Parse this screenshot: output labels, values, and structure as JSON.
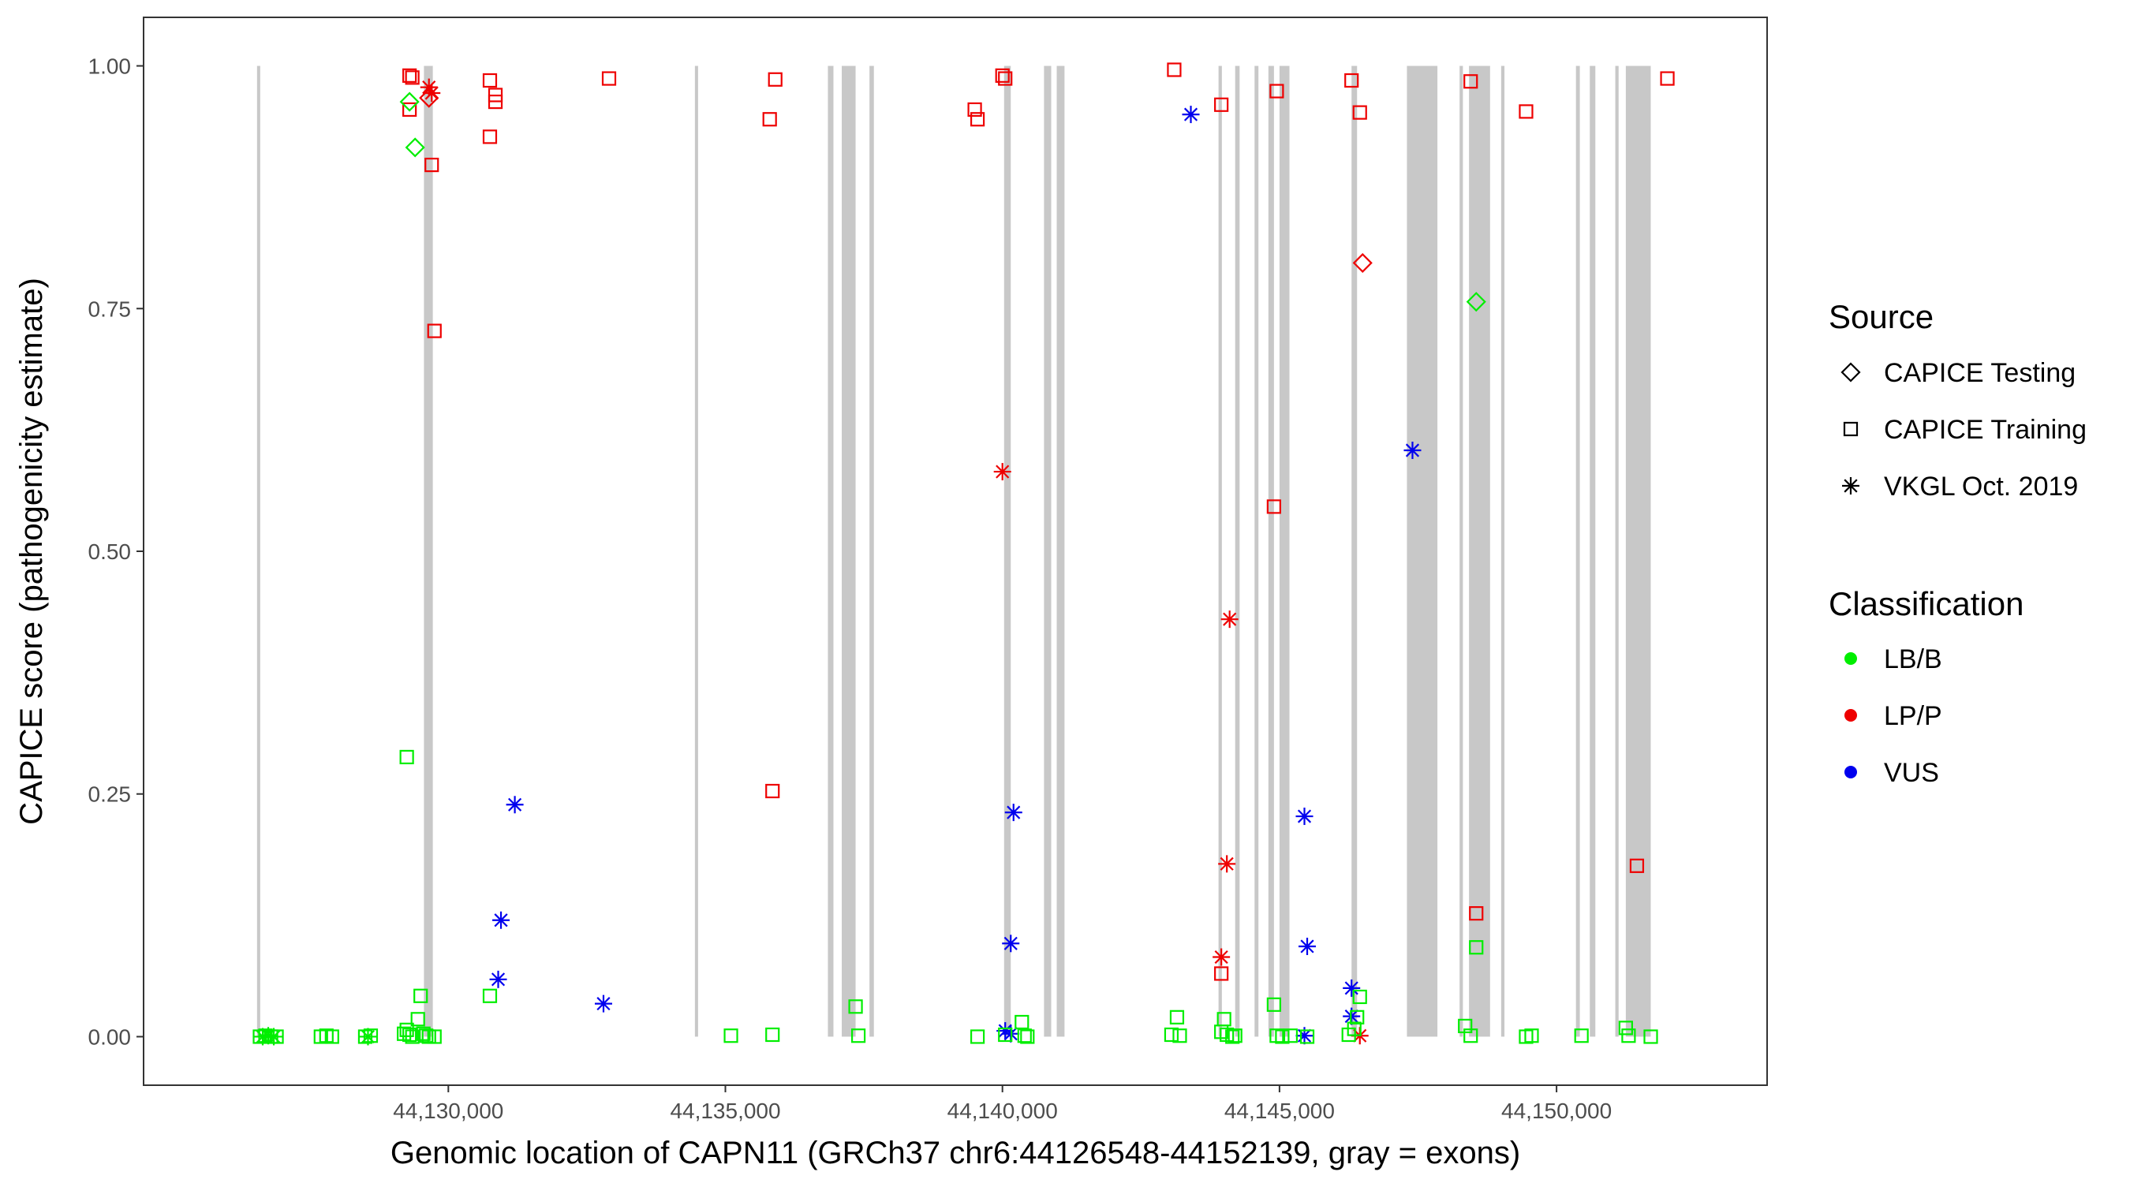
{
  "chart_data": {
    "type": "scatter",
    "title": "",
    "xlabel": "Genomic location of CAPN11 (GRCh37 chr6:44126548-44152139, gray = exons)",
    "ylabel": "CAPICE score (pathogenicity estimate)",
    "xlim": [
      44124500,
      44153800
    ],
    "ylim": [
      -0.05,
      1.05
    ],
    "x_ticks": [
      44130000,
      44135000,
      44140000,
      44145000,
      44150000
    ],
    "x_tick_labels": [
      "44,130,000",
      "44,135,000",
      "44,140,000",
      "44,145,000",
      "44,150,000"
    ],
    "y_ticks": [
      0,
      0.25,
      0.5,
      0.75,
      1.0
    ],
    "y_tick_labels": [
      "0.00",
      "0.25",
      "0.50",
      "0.75",
      "1.00"
    ],
    "grid": false,
    "exons": [
      [
        44126548,
        44126600
      ],
      [
        44129560,
        44129720
      ],
      [
        44134450,
        44134500
      ],
      [
        44136850,
        44136950
      ],
      [
        44137100,
        44137350
      ],
      [
        44137600,
        44137680
      ],
      [
        44140030,
        44140150
      ],
      [
        44140750,
        44140880
      ],
      [
        44140980,
        44141120
      ],
      [
        44143900,
        44143960
      ],
      [
        44144200,
        44144280
      ],
      [
        44144550,
        44144620
      ],
      [
        44144800,
        44144900
      ],
      [
        44145000,
        44145180
      ],
      [
        44146300,
        44146400
      ],
      [
        44147300,
        44147850
      ],
      [
        44148250,
        44148310
      ],
      [
        44148420,
        44148800
      ],
      [
        44149000,
        44149060
      ],
      [
        44150350,
        44150420
      ],
      [
        44150600,
        44150700
      ],
      [
        44151060,
        44151120
      ],
      [
        44151250,
        44151700
      ]
    ],
    "legend": {
      "placement": "right",
      "source_title": "Source",
      "source_items": [
        {
          "label": "CAPICE Testing",
          "shape": "diamond"
        },
        {
          "label": "CAPICE Training",
          "shape": "square"
        },
        {
          "label": "VKGL Oct. 2019",
          "shape": "asterisk"
        }
      ],
      "class_title": "Classification",
      "class_items": [
        {
          "label": "LB/B",
          "color": "#00ee00"
        },
        {
          "label": "LP/P",
          "color": "#ee0000"
        },
        {
          "label": "VUS",
          "color": "#0000ee"
        }
      ]
    },
    "series": [
      {
        "source": "CAPICE Training",
        "shape": "square",
        "classification": "LP/P",
        "color": "#ee0000",
        "x": [
          44129300,
          44129350,
          44129300,
          44129700,
          44129750,
          44130750,
          44130850,
          44130850,
          44130750,
          44132900,
          44135900,
          44135800,
          44135850,
          44139500,
          44139550,
          44140000,
          44140050,
          44143100,
          44143950,
          44144950,
          44144900,
          44146300,
          44146450,
          44148450,
          44149450,
          44152000,
          44143950,
          44151450,
          44148550
        ],
        "y": [
          0.99,
          0.988,
          0.955,
          0.898,
          0.727,
          0.985,
          0.97,
          0.963,
          0.927,
          0.987,
          0.986,
          0.945,
          0.253,
          0.955,
          0.945,
          0.99,
          0.987,
          0.996,
          0.96,
          0.974,
          0.546,
          0.985,
          0.952,
          0.984,
          0.953,
          0.987,
          0.065,
          0.176,
          0.127
        ]
      },
      {
        "source": "CAPICE Testing",
        "shape": "diamond",
        "classification": "LP/P",
        "color": "#ee0000",
        "x": [
          44129650,
          44146500
        ],
        "y": [
          0.967,
          0.797
        ]
      },
      {
        "source": "CAPICE Testing",
        "shape": "diamond",
        "classification": "LB/B",
        "color": "#00ee00",
        "x": [
          44129300,
          44129400,
          44148550
        ],
        "y": [
          0.963,
          0.916,
          0.757
        ]
      },
      {
        "source": "VKGL Oct. 2019",
        "shape": "asterisk",
        "classification": "LP/P",
        "color": "#ee0000",
        "x": [
          44129650,
          44129700,
          44140000,
          44144100,
          44144050,
          44143950,
          44146450
        ],
        "y": [
          0.978,
          0.972,
          0.582,
          0.43,
          0.178,
          0.082,
          0.001
        ]
      },
      {
        "source": "VKGL Oct. 2019",
        "shape": "asterisk",
        "classification": "VUS",
        "color": "#0000ee",
        "x": [
          44143400,
          44147400,
          44131200,
          44130950,
          44130900,
          44132800,
          44140200,
          44140150,
          44140050,
          44140150,
          44145450,
          44145500,
          44146300,
          44146300,
          44145450
        ],
        "y": [
          0.95,
          0.604,
          0.239,
          0.12,
          0.059,
          0.034,
          0.231,
          0.096,
          0.006,
          0.003,
          0.227,
          0.093,
          0.05,
          0.021,
          0.001
        ]
      },
      {
        "source": "CAPICE Training",
        "shape": "square",
        "classification": "LB/B",
        "color": "#00ee00",
        "x": [
          44126600,
          44126700,
          44126800,
          44126900,
          44127700,
          44127800,
          44127900,
          44128500,
          44128600,
          44129200,
          44129250,
          44129300,
          44129350,
          44129450,
          44129500,
          44129550,
          44129600,
          44129650,
          44129750,
          44129250,
          44130750,
          44135100,
          44135850,
          44137350,
          44137400,
          44139550,
          44140050,
          44140350,
          44140400,
          44140450,
          44143050,
          44143150,
          44143200,
          44143950,
          44144000,
          44144050,
          44144150,
          44144200,
          44144900,
          44144950,
          44145050,
          44145200,
          44145500,
          44146250,
          44146350,
          44146400,
          44146450,
          44148350,
          44148450,
          44148550,
          44149450,
          44149550,
          44150450,
          44151250,
          44151300,
          44151700
        ],
        "y": [
          0.0,
          0.001,
          0.0,
          0.0,
          0.0,
          0.001,
          0.0,
          0.0,
          0.001,
          0.003,
          0.007,
          0.002,
          0.0,
          0.018,
          0.042,
          0.003,
          0.001,
          0.0,
          0.0,
          0.288,
          0.042,
          0.001,
          0.002,
          0.031,
          0.001,
          0.0,
          0.002,
          0.015,
          0.001,
          0.0,
          0.002,
          0.02,
          0.001,
          0.005,
          0.018,
          0.002,
          0.0,
          0.001,
          0.033,
          0.001,
          0.0,
          0.001,
          0.0,
          0.002,
          0.008,
          0.02,
          0.041,
          0.011,
          0.001,
          0.092,
          0.0,
          0.001,
          0.001,
          0.009,
          0.001,
          0.0
        ]
      },
      {
        "source": "VKGL Oct. 2019",
        "shape": "asterisk",
        "classification": "LB/B",
        "color": "#00ee00",
        "x": [
          44126650,
          44126750,
          44126850,
          44128550
        ],
        "y": [
          0.0,
          0.001,
          0.0,
          0.0
        ]
      }
    ]
  }
}
